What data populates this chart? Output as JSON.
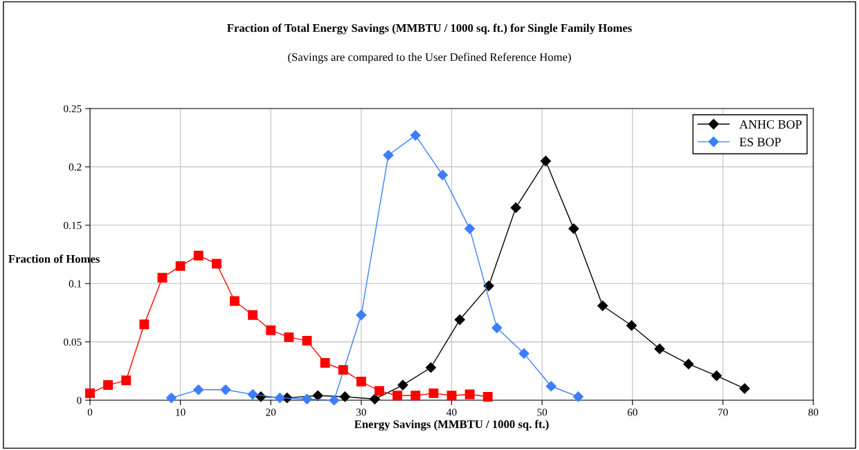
{
  "chart_data": {
    "type": "line",
    "title": "Fraction of Total Energy Savings (MMBTU / 1000 sq. ft.) for Single Family Homes",
    "subtitle": "(Savings are compared to the User Defined Reference Home)",
    "xlabel": "Energy Savings (MMBTU / 1000 sq. ft.)",
    "ylabel": "Fraction of Homes",
    "xlim": [
      0,
      80
    ],
    "xticks": [
      0,
      10,
      20,
      30,
      40,
      50,
      60,
      70,
      80
    ],
    "ylim": [
      0,
      0.25
    ],
    "yticks": [
      0,
      0.05,
      0.1,
      0.15,
      0.2,
      0.25
    ],
    "grid": true,
    "legend": "top right",
    "series": [
      {
        "name": "ANHC BOP",
        "color": "#000000",
        "marker": "diamond",
        "x": [
          18.9,
          21.8,
          25.2,
          28.2,
          31.5,
          34.6,
          37.7,
          40.9,
          44.1,
          47.1,
          50.4,
          53.5,
          56.7,
          59.9,
          63.0,
          66.2,
          69.3,
          72.4
        ],
        "values": [
          0.003,
          0.002,
          0.004,
          0.003,
          0.001,
          0.013,
          0.028,
          0.069,
          0.098,
          0.165,
          0.205,
          0.147,
          0.081,
          0.064,
          0.044,
          0.031,
          0.021,
          0.01
        ]
      },
      {
        "name": "ES BOP",
        "color": "#3d7eff",
        "marker": "diamond",
        "x": [
          9,
          12,
          15,
          18,
          21,
          24,
          27,
          30,
          33,
          36,
          39,
          42,
          45,
          48,
          51,
          54
        ],
        "values": [
          0.002,
          0.009,
          0.009,
          0.005,
          0.002,
          0.001,
          0.0,
          0.073,
          0.21,
          0.227,
          0.193,
          0.147,
          0.062,
          0.04,
          0.012,
          0.003
        ]
      },
      {
        "color": "#ff0000",
        "marker": "square",
        "x": [
          0,
          2,
          4,
          6,
          8,
          10,
          12,
          14,
          16,
          18,
          20,
          22,
          24,
          26,
          28,
          30,
          32,
          34,
          36,
          38,
          40,
          42,
          44
        ],
        "values": [
          0.006,
          0.013,
          0.017,
          0.065,
          0.105,
          0.115,
          0.124,
          0.117,
          0.085,
          0.073,
          0.06,
          0.054,
          0.051,
          0.032,
          0.026,
          0.016,
          0.008,
          0.004,
          0.004,
          0.006,
          0.004,
          0.005,
          0.003
        ]
      }
    ]
  }
}
